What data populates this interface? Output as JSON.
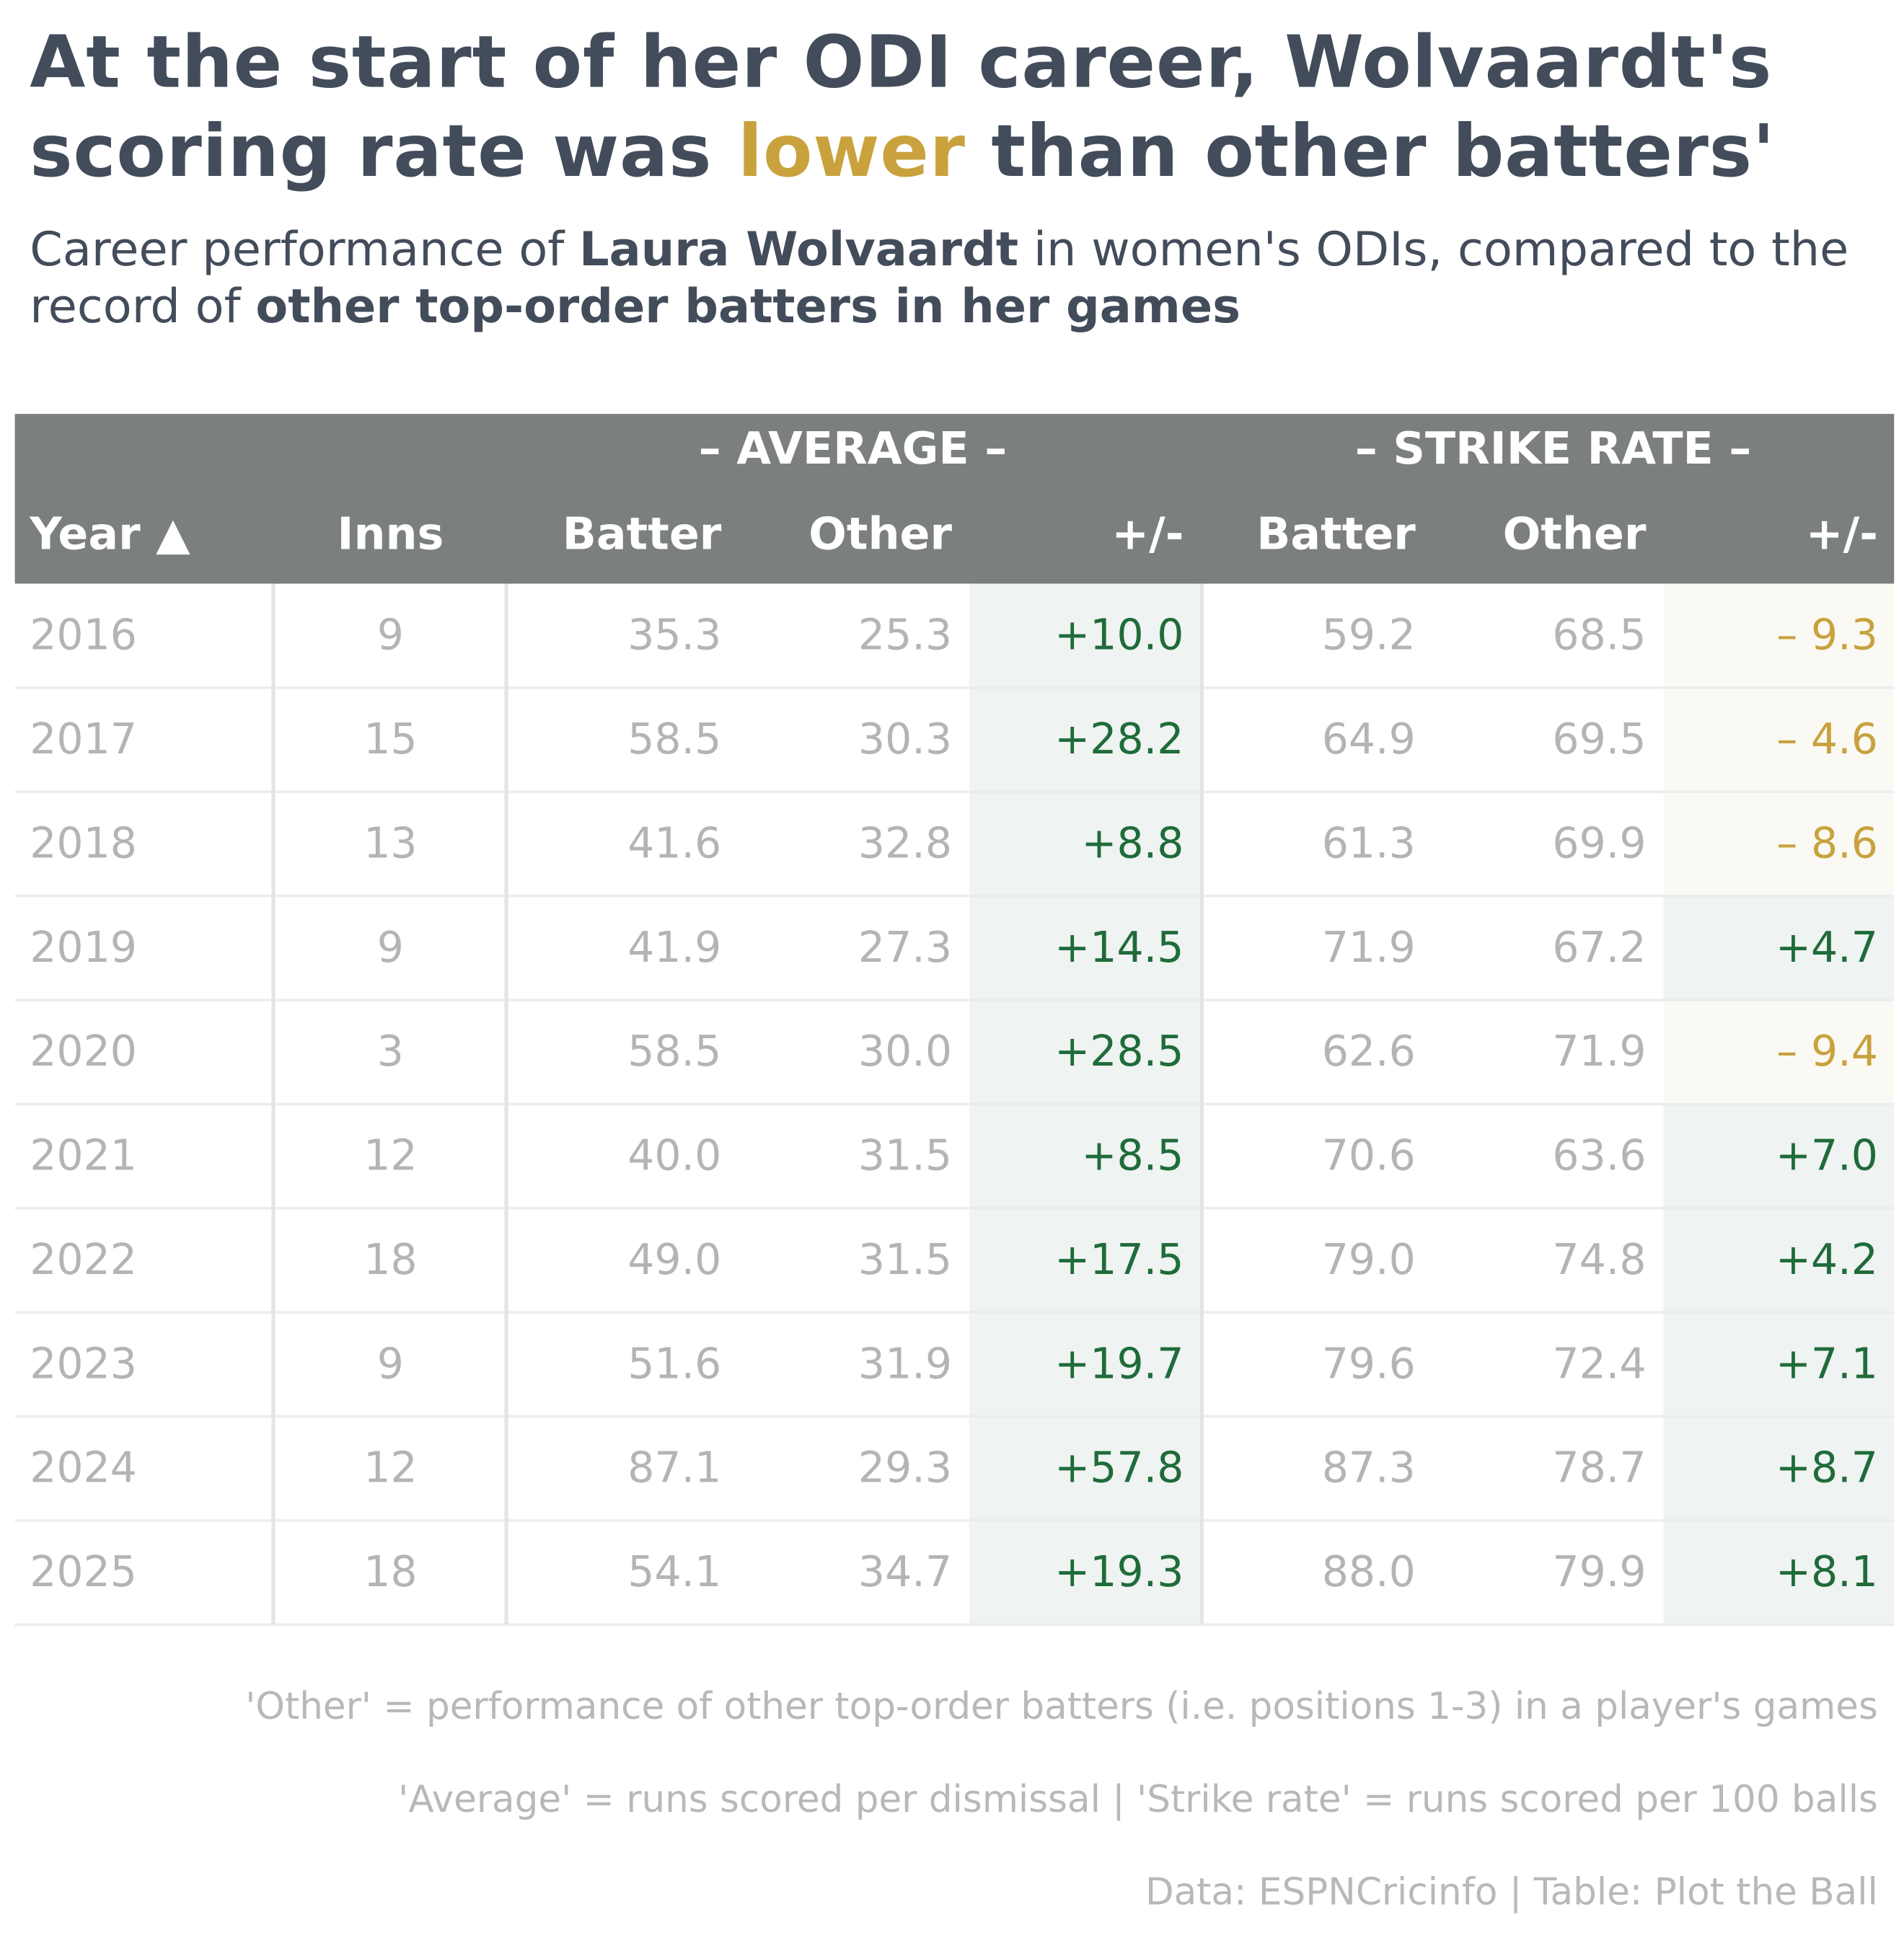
{
  "title": {
    "parts": [
      "At the start of her ODI career, Wolvaardt's scoring rate was ",
      "lower",
      " than other batters'"
    ]
  },
  "subtitle": {
    "parts": [
      "Career performance of ",
      "Laura Wolvaardt",
      " in women's ODIs, compared to the record of ",
      "other top-order batters in her games"
    ]
  },
  "table": {
    "groups": [
      "– AVERAGE –",
      "– STRIKE RATE –"
    ],
    "headers": [
      "Year ▲",
      "Inns",
      "Batter",
      "Other",
      "+/-",
      "Batter",
      "Other",
      "+/-"
    ],
    "rows": [
      [
        "2016",
        "9",
        "35.3",
        "25.3",
        "+10.0",
        "59.2",
        "68.5",
        "– 9.3"
      ],
      [
        "2017",
        "15",
        "58.5",
        "30.3",
        "+28.2",
        "64.9",
        "69.5",
        "– 4.6"
      ],
      [
        "2018",
        "13",
        "41.6",
        "32.8",
        "+8.8",
        "61.3",
        "69.9",
        "– 8.6"
      ],
      [
        "2019",
        "9",
        "41.9",
        "27.3",
        "+14.5",
        "71.9",
        "67.2",
        "+4.7"
      ],
      [
        "2020",
        "3",
        "58.5",
        "30.0",
        "+28.5",
        "62.6",
        "71.9",
        "– 9.4"
      ],
      [
        "2021",
        "12",
        "40.0",
        "31.5",
        "+8.5",
        "70.6",
        "63.6",
        "+7.0"
      ],
      [
        "2022",
        "18",
        "49.0",
        "31.5",
        "+17.5",
        "79.0",
        "74.8",
        "+4.2"
      ],
      [
        "2023",
        "9",
        "51.6",
        "31.9",
        "+19.7",
        "79.6",
        "72.4",
        "+7.1"
      ],
      [
        "2024",
        "12",
        "87.1",
        "29.3",
        "+57.8",
        "87.3",
        "78.7",
        "+8.7"
      ],
      [
        "2025",
        "18",
        "54.1",
        "34.7",
        "+19.3",
        "88.0",
        "79.9",
        "+8.1"
      ]
    ]
  },
  "footnotes": [
    "'Other' = performance of other top-order batters (i.e. positions 1-3) in a player's games",
    "'Average' = runs scored per dismissal | 'Strike rate' = runs scored per 100 balls",
    "Data: ESPNCricinfo | Table: Plot the Ball"
  ]
}
